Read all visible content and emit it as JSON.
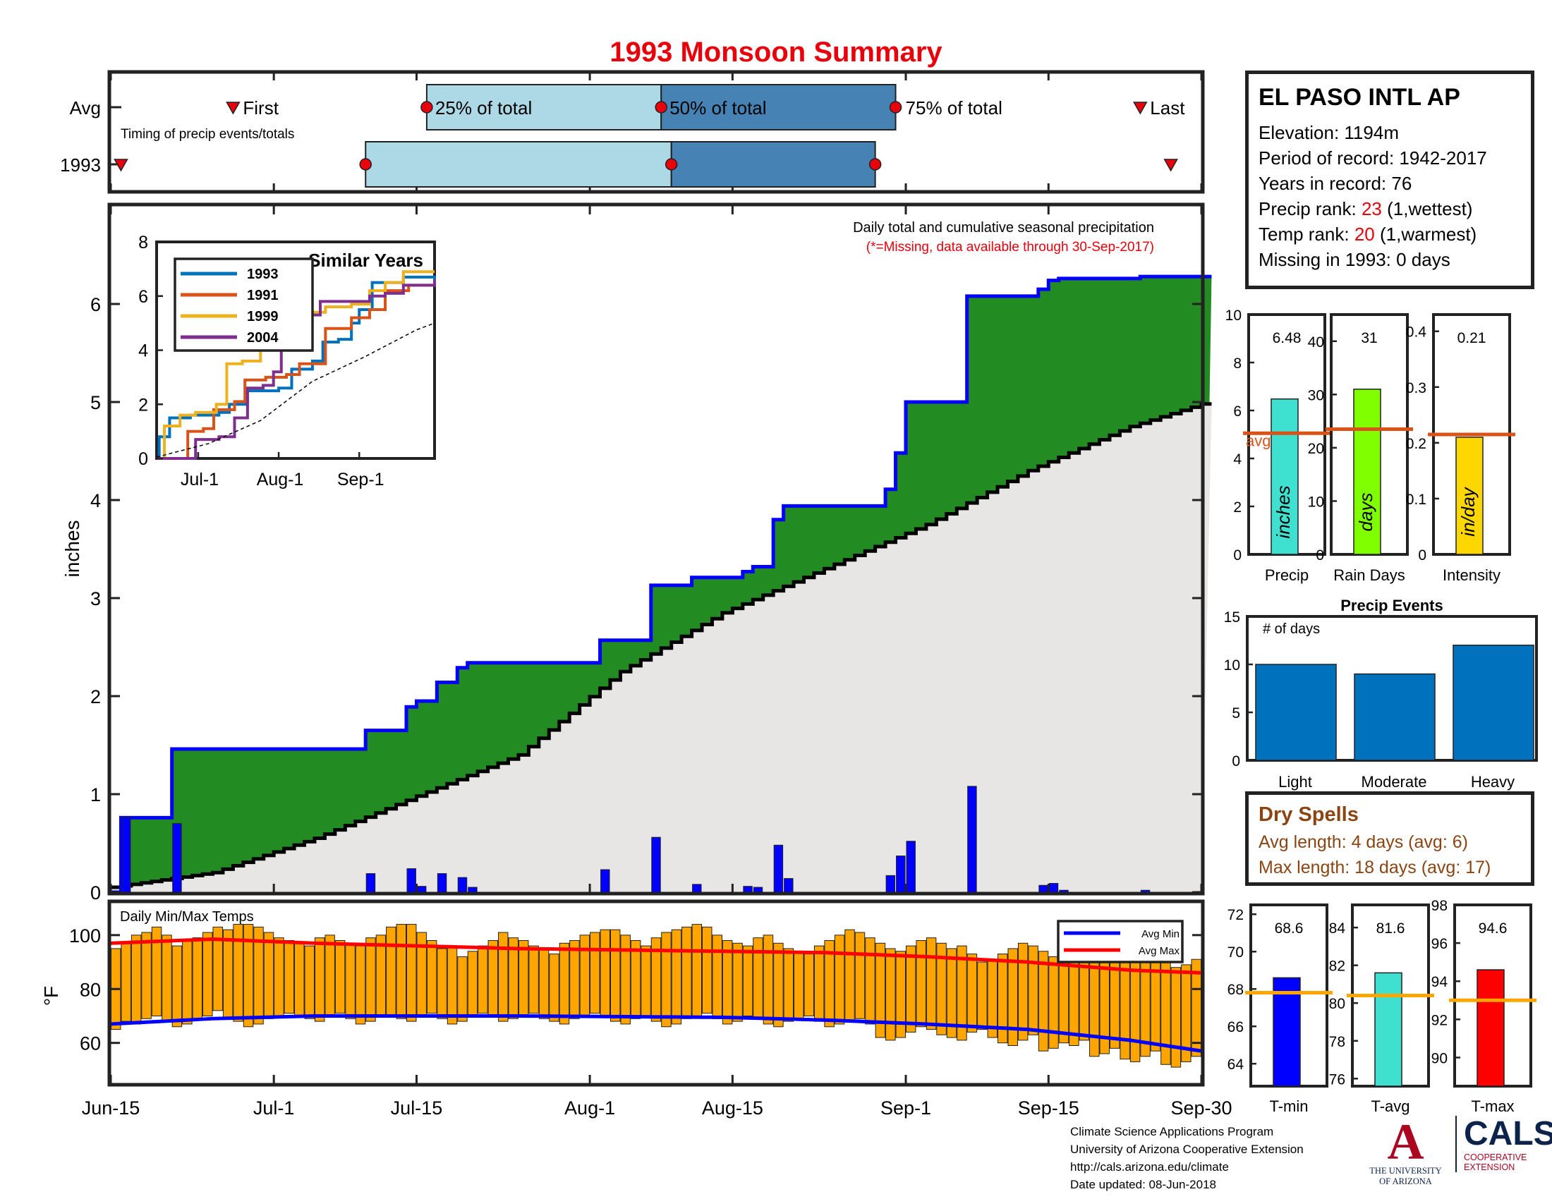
{
  "title": "1993 Monsoon Summary",
  "colors": {
    "title": "#e8000b",
    "green": "#228b22",
    "blue": "#0000ff",
    "grey": "#e8e6e5",
    "light_blue": "#add8e6",
    "steel_blue": "#4682b4",
    "orange": "#ffa500",
    "avg_line": "#d95319"
  },
  "station": {
    "name": "EL PASO INTL AP",
    "elevation": "Elevation: 1194m",
    "period": "Period of record: 1942-2017",
    "years": "Years in record: 76",
    "precip_rank_label": "Precip rank: ",
    "precip_rank_value": "23",
    "precip_rank_suffix": " (1,wettest)",
    "temp_rank_label": "Temp rank: ",
    "temp_rank_value": "20",
    "temp_rank_suffix": " (1,warmest)",
    "missing": "Missing in 1993: 0 days"
  },
  "dry_spells": {
    "heading": "Dry Spells",
    "avg_length": "Avg length: 4 days (avg: 6)",
    "max_length": "Max length: 18 days (avg: 17)"
  },
  "footer": {
    "line1": "Climate Science Applications Program",
    "line2": "University of Arizona Cooperative Extension",
    "line3": "http://cals.arizona.edu/climate",
    "line4": " Date updated: 08-Jun-2018"
  },
  "logos": {
    "ua_mark": "A",
    "ua_name_1": "THE UNIVERSITY",
    "ua_name_2": "OF ARIZONA",
    "cals_mark": "CALS",
    "cals_sub_1": "COOPERATIVE",
    "cals_sub_2": "EXTENSION"
  },
  "chart_data": [
    {
      "id": "timing",
      "type": "bar",
      "label": "Timing of precip events/totals",
      "rows": [
        {
          "name": "Avg",
          "first": "Jun-27",
          "p25": "Jul-16",
          "p50": "Aug-8",
          "p75": "Aug-31",
          "last": "Sep-24"
        },
        {
          "name": "1993",
          "first": "Jun-16",
          "p25": "Jul-10",
          "p50": "Aug-9",
          "p75": "Aug-29",
          "last": "Sep-27"
        }
      ],
      "labels": {
        "first": "First",
        "p25": "25% of total",
        "p50": "50% of total",
        "p75": "75% of total",
        "last": "Last"
      },
      "x_range": [
        "Jun-15",
        "Sep-30"
      ]
    },
    {
      "id": "precip",
      "type": "area",
      "title": "Daily total and cumulative seasonal precipitation",
      "note": "(*=Missing, data available through 30-Sep-2017)",
      "ylabel": "inches",
      "ylim": [
        0,
        7
      ],
      "yticks": [
        0,
        1,
        2,
        3,
        4,
        5,
        6
      ],
      "xticks": [
        "Jun-15",
        "Jul-1",
        "Jul-15",
        "Aug-1",
        "Aug-15",
        "Sep-1",
        "Sep-15",
        "Sep-30"
      ],
      "x_days": [
        0,
        16,
        30,
        47,
        61,
        78,
        92,
        107
      ],
      "daily_1993": [
        [
          1,
          0.76
        ],
        [
          6,
          0.7
        ],
        [
          25,
          0.19
        ],
        [
          29,
          0.24
        ],
        [
          30,
          0.06
        ],
        [
          32,
          0.19
        ],
        [
          34,
          0.15
        ],
        [
          35,
          0.05
        ],
        [
          48,
          0.23
        ],
        [
          53,
          0.56
        ],
        [
          57,
          0.08
        ],
        [
          62,
          0.06
        ],
        [
          63,
          0.05
        ],
        [
          65,
          0.48
        ],
        [
          66,
          0.14
        ],
        [
          76,
          0.17
        ],
        [
          77,
          0.37
        ],
        [
          78,
          0.52
        ],
        [
          84,
          1.08
        ],
        [
          91,
          0.07
        ],
        [
          92,
          0.09
        ],
        [
          93,
          0.02
        ],
        [
          101,
          0.02
        ]
      ],
      "avg_cumulative": [
        [
          0,
          0.05
        ],
        [
          10,
          0.2
        ],
        [
          20,
          0.55
        ],
        [
          30,
          0.98
        ],
        [
          40,
          1.4
        ],
        [
          50,
          2.25
        ],
        [
          60,
          2.85
        ],
        [
          70,
          3.3
        ],
        [
          80,
          3.75
        ],
        [
          90,
          4.3
        ],
        [
          100,
          4.75
        ],
        [
          107,
          4.98
        ]
      ]
    },
    {
      "id": "similar_years",
      "type": "line",
      "title": "Similar Years",
      "ylim": [
        0,
        8
      ],
      "yticks": [
        0,
        2,
        4,
        6,
        8
      ],
      "xticks": [
        "Jul-1",
        "Aug-1",
        "Sep-1"
      ],
      "x_days": [
        16,
        47,
        78
      ],
      "series": [
        {
          "name": "1993",
          "color": "#0072bd",
          "points": [
            [
              0,
              0
            ],
            [
              1,
              0.8
            ],
            [
              5,
              1.5
            ],
            [
              6,
              1.5
            ],
            [
              13,
              1.6
            ],
            [
              24,
              1.7
            ],
            [
              28,
              2.0
            ],
            [
              35,
              2.5
            ],
            [
              47,
              2.6
            ],
            [
              52,
              3.3
            ],
            [
              55,
              3.3
            ],
            [
              60,
              3.6
            ],
            [
              64,
              4.3
            ],
            [
              70,
              4.4
            ],
            [
              75,
              5.0
            ],
            [
              78,
              5.5
            ],
            [
              83,
              6.5
            ],
            [
              95,
              6.7
            ],
            [
              107,
              6.6
            ]
          ]
        },
        {
          "name": "1991",
          "color": "#d95319",
          "points": [
            [
              0,
              0
            ],
            [
              10,
              0
            ],
            [
              12,
              1.0
            ],
            [
              18,
              1.1
            ],
            [
              22,
              1.8
            ],
            [
              30,
              2.1
            ],
            [
              34,
              2.9
            ],
            [
              42,
              3.0
            ],
            [
              50,
              3.1
            ],
            [
              55,
              3.5
            ],
            [
              65,
              4.8
            ],
            [
              75,
              5.2
            ],
            [
              82,
              5.5
            ],
            [
              88,
              6.2
            ],
            [
              97,
              6.4
            ],
            [
              107,
              6.6
            ]
          ]
        },
        {
          "name": "1999",
          "color": "#edb120",
          "points": [
            [
              0,
              0
            ],
            [
              3,
              1.2
            ],
            [
              9,
              1.6
            ],
            [
              15,
              1.7
            ],
            [
              23,
              2.0
            ],
            [
              27,
              3.5
            ],
            [
              33,
              3.6
            ],
            [
              40,
              4.3
            ],
            [
              45,
              4.3
            ],
            [
              50,
              5.3
            ],
            [
              58,
              5.4
            ],
            [
              65,
              5.6
            ],
            [
              75,
              5.7
            ],
            [
              82,
              6.2
            ],
            [
              88,
              6.5
            ],
            [
              95,
              6.9
            ],
            [
              107,
              6.9
            ]
          ]
        },
        {
          "name": "2004",
          "color": "#7e2f8e",
          "points": [
            [
              0,
              0
            ],
            [
              12,
              0
            ],
            [
              15,
              0.7
            ],
            [
              24,
              0.8
            ],
            [
              30,
              1.5
            ],
            [
              35,
              2.6
            ],
            [
              41,
              2.7
            ],
            [
              45,
              3.2
            ],
            [
              48,
              4.8
            ],
            [
              52,
              4.9
            ],
            [
              57,
              5.3
            ],
            [
              63,
              5.8
            ],
            [
              70,
              5.8
            ],
            [
              78,
              5.8
            ],
            [
              82,
              6.0
            ],
            [
              88,
              6.1
            ],
            [
              95,
              6.4
            ],
            [
              107,
              6.6
            ]
          ]
        },
        {
          "name": "avg",
          "color": "#000000",
          "points": [
            [
              0,
              0.05
            ],
            [
              20,
              0.55
            ],
            [
              40,
              1.4
            ],
            [
              60,
              2.85
            ],
            [
              80,
              3.75
            ],
            [
              100,
              4.75
            ],
            [
              107,
              5.0
            ]
          ]
        }
      ]
    },
    {
      "id": "temps",
      "type": "bar",
      "title": "Daily Min/Max Temps",
      "ylabel": "°F",
      "ylim": [
        45,
        112
      ],
      "yticks": [
        60,
        80,
        100
      ],
      "legend": [
        "Avg Min",
        "Avg Max"
      ],
      "avg_min": [
        [
          0,
          67
        ],
        [
          10,
          69
        ],
        [
          20,
          70
        ],
        [
          40,
          70
        ],
        [
          60,
          69.5
        ],
        [
          70,
          68.5
        ],
        [
          80,
          67
        ],
        [
          90,
          65
        ],
        [
          100,
          61
        ],
        [
          107,
          57
        ]
      ],
      "avg_max": [
        [
          0,
          97
        ],
        [
          10,
          98.5
        ],
        [
          20,
          97
        ],
        [
          40,
          95
        ],
        [
          60,
          94
        ],
        [
          70,
          93.5
        ],
        [
          80,
          92
        ],
        [
          90,
          90
        ],
        [
          100,
          87
        ],
        [
          107,
          86
        ]
      ]
    },
    {
      "id": "precip_stats",
      "type": "bar",
      "panels": [
        {
          "label": "Precip",
          "unit": "inches",
          "value": 6.48,
          "avg": 5.05,
          "ylim": [
            0,
            10
          ],
          "yticks": [
            0,
            2,
            4,
            6,
            8,
            10
          ],
          "color": "#40e0d0",
          "value_text": "6.48",
          "avg_label": "avg"
        },
        {
          "label": "Rain Days",
          "unit": "days",
          "value": 31,
          "avg": 23.5,
          "ylim": [
            0,
            45
          ],
          "yticks": [
            0,
            10,
            20,
            30,
            40
          ],
          "color": "#7fff00",
          "value_text": "31"
        },
        {
          "label": "Intensity",
          "unit": "in/day",
          "value": 0.21,
          "avg": 0.215,
          "ylim": [
            0,
            0.43
          ],
          "yticks": [
            0,
            0.1,
            0.2,
            0.3,
            0.4
          ],
          "ytick_labels": [
            "0",
            "0.1",
            "0.2",
            "0.3",
            "0.4"
          ],
          "color": "#ffd700",
          "value_text": "0.21"
        }
      ]
    },
    {
      "id": "precip_events",
      "type": "bar",
      "title": "Precip Events",
      "ylabel": "# of days",
      "categories": [
        "Light",
        "Moderate",
        "Heavy"
      ],
      "values": [
        10,
        9,
        12
      ],
      "ylim": [
        0,
        15
      ],
      "yticks": [
        0,
        5,
        10,
        15
      ]
    },
    {
      "id": "temp_stats",
      "type": "bar",
      "panels": [
        {
          "label": "T-min",
          "value": 68.6,
          "avg": 67.8,
          "ylim": [
            62.8,
            72.5
          ],
          "yticks": [
            64,
            66,
            68,
            70,
            72
          ],
          "color": "#0000ff",
          "value_text": "68.6"
        },
        {
          "label": "T-avg",
          "value": 81.6,
          "avg": 80.4,
          "ylim": [
            75.6,
            85.2
          ],
          "yticks": [
            76,
            78,
            80,
            82,
            84
          ],
          "color": "#40e0d0",
          "value_text": "81.6"
        },
        {
          "label": "T-max",
          "value": 94.6,
          "avg": 93.0,
          "ylim": [
            88.5,
            98
          ],
          "yticks": [
            90,
            92,
            94,
            96,
            98
          ],
          "color": "#ff0000",
          "value_text": "94.6"
        }
      ]
    }
  ]
}
